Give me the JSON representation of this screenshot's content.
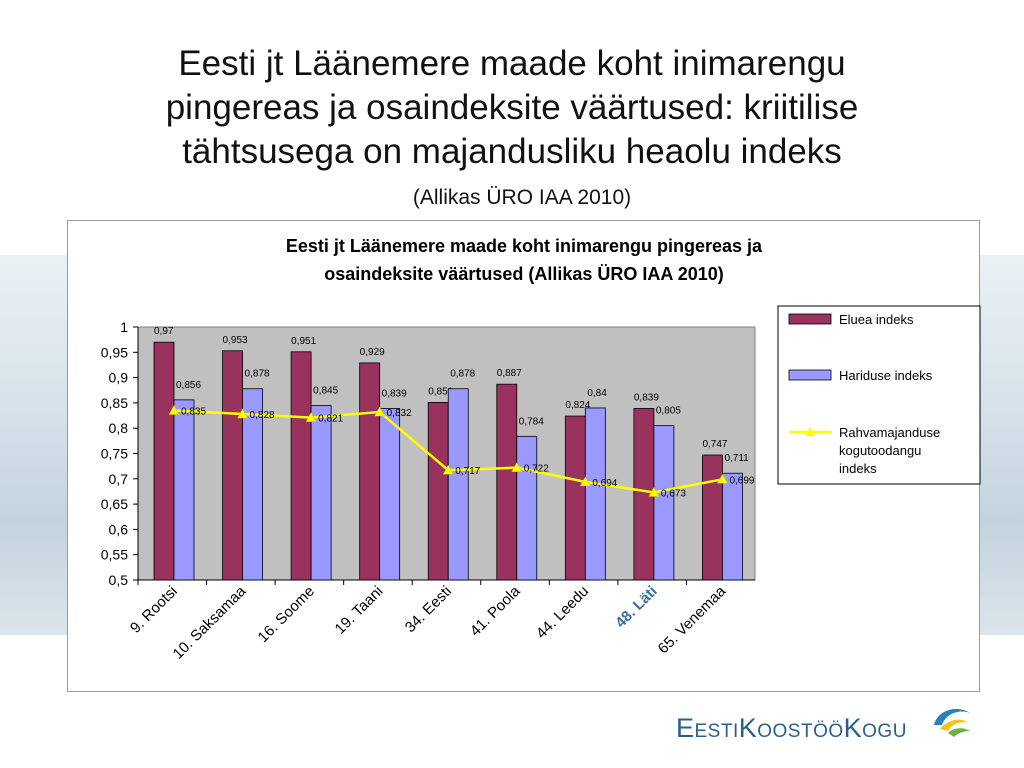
{
  "slide": {
    "title_lines": [
      "Eesti jt Läänemere maade koht inimarengu",
      "pingereas ja osaindeksite väärtused: kriitilise",
      "tähtsusega on majandusliku heaolu indeks"
    ],
    "subtitle": "(Allikas ÜRO IAA 2010)"
  },
  "logo": {
    "text": "EestiKoostööKogu"
  },
  "chart_data": {
    "type": "bar",
    "title_lines": [
      "Eesti jt Läänemere maade koht inimarengu pingereas ja",
      "osaindeksite väärtused (Allikas ÜRO IAA 2010)"
    ],
    "categories": [
      "9. Rootsi",
      "10. Saksamaa",
      "16. Soome",
      "19. Taani",
      "34. Eesti",
      "41. Poola",
      "44. Leedu",
      "48. Läti",
      "65. Venemaa"
    ],
    "highlight_category_index": 7,
    "series": [
      {
        "name": "Eluea indeks",
        "type": "bar",
        "color": "#99335e",
        "values": [
          0.97,
          0.953,
          0.951,
          0.929,
          0.851,
          0.887,
          0.824,
          0.839,
          0.747
        ],
        "labels": [
          "0,97",
          "0,953",
          "0,951",
          "0,929",
          "0,851",
          "0,887",
          "0,824",
          "0,839",
          "0,747"
        ]
      },
      {
        "name": "Hariduse indeks",
        "type": "bar",
        "color": "#9999ff",
        "values": [
          0.856,
          0.878,
          0.845,
          0.839,
          0.878,
          0.784,
          0.84,
          0.805,
          0.711
        ],
        "labels": [
          "0,856",
          "0,878",
          "0,845",
          "0,839",
          "0,878",
          "0,784",
          "0,84",
          "0,805",
          "0,711"
        ]
      },
      {
        "name": "Rahvamajanduse kogutoodangu indeks",
        "type": "line",
        "color": "#ffff00",
        "legend_lines": [
          "Rahvamajanduse",
          "kogutoodangu",
          "indeks"
        ],
        "values": [
          0.835,
          0.828,
          0.821,
          0.832,
          0.717,
          0.722,
          0.694,
          0.673,
          0.699
        ],
        "labels": [
          "0,835",
          "0,828",
          "0,821",
          "0,832",
          "0,717",
          "0,722",
          "0,694",
          "0,673",
          "0,699"
        ]
      }
    ],
    "ylim": [
      0.5,
      1
    ],
    "yticks": [
      0.5,
      0.55,
      0.6,
      0.65,
      0.7,
      0.75,
      0.8,
      0.85,
      0.9,
      0.95,
      1
    ],
    "ytick_labels": [
      "0,5",
      "0,55",
      "0,6",
      "0,65",
      "0,7",
      "0,75",
      "0,8",
      "0,85",
      "0,9",
      "0,95",
      "1"
    ],
    "plot_background": "#c0c0c0",
    "legend_position": "right",
    "grid": false
  }
}
